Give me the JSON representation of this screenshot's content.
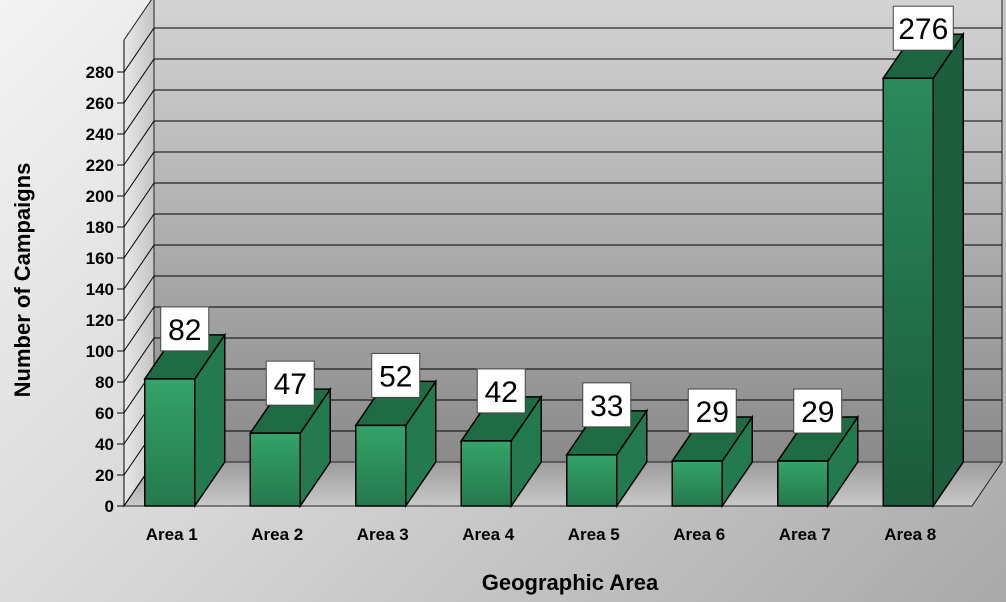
{
  "chart_data": {
    "type": "bar",
    "title": "",
    "xlabel": "Geographic Area",
    "ylabel": "Number of Campaigns",
    "ylim": [
      0,
      280
    ],
    "y_ticks": [
      0,
      20,
      40,
      60,
      80,
      100,
      120,
      140,
      160,
      180,
      200,
      220,
      240,
      260,
      280
    ],
    "categories": [
      "Area 1",
      "Area 2",
      "Area 3",
      "Area 4",
      "Area 5",
      "Area 6",
      "Area 7",
      "Area 8"
    ],
    "values": [
      82,
      47,
      52,
      42,
      33,
      29,
      29,
      276
    ],
    "data_labels": [
      "82",
      "47",
      "52",
      "42",
      "33",
      "29",
      "29",
      "276"
    ],
    "grid": true,
    "style": "3d",
    "colors": {
      "bar_front": "#2f9a63",
      "bar_side": "#1f6b44",
      "bar_top": "#216f48",
      "highlight_front": "#1f6a47",
      "wall_light": "#d4d4d4",
      "wall_dark": "#8a8a8a"
    }
  }
}
